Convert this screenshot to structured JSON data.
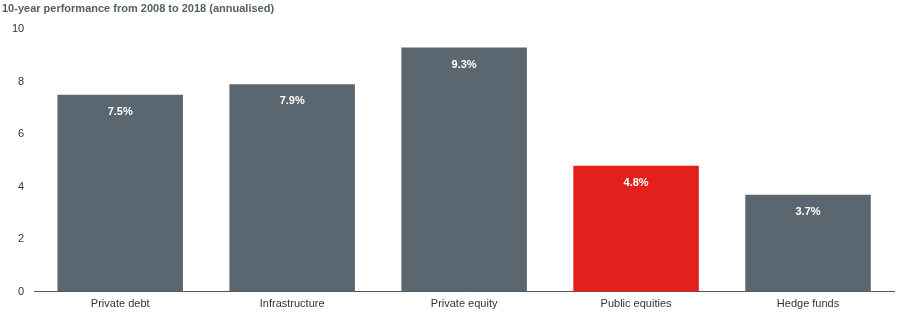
{
  "chart_data": {
    "type": "bar",
    "title": "10-year performance from 2008 to 2018 (annualised)",
    "categories": [
      "Private debt",
      "Infrastructure",
      "Private equity",
      "Public equities",
      "Hedge funds"
    ],
    "values": [
      7.5,
      7.9,
      9.3,
      4.8,
      3.7
    ],
    "value_labels": [
      "7.5%",
      "7.9%",
      "9.3%",
      "4.8%",
      "3.7%"
    ],
    "colors": [
      "#5b6770",
      "#5b6770",
      "#5b6770",
      "#e2211c",
      "#5b6770"
    ],
    "ylim": [
      0,
      10
    ],
    "yticks": [
      0,
      2,
      4,
      6,
      8,
      10
    ],
    "grid": false,
    "data_labels": true
  }
}
